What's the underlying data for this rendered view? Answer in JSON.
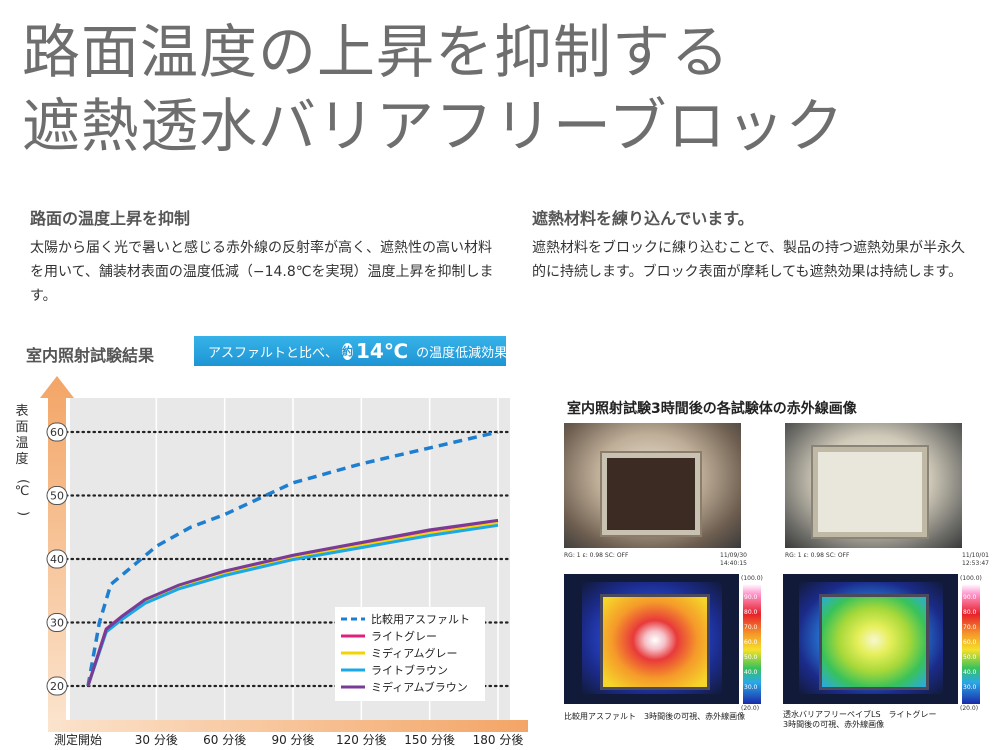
{
  "title": {
    "line1": "路面温度の上昇を抑制する",
    "line2": "遮熱透水バリアフリーブロック"
  },
  "left_block": {
    "heading": "路面の温度上昇を抑制",
    "body": "太陽から届く光で暑いと感じる赤外線の反射率が高く、遮熱性の高い材料を用いて、舗装材表面の温度低減（−14.8℃を実現）温度上昇を抑制します。"
  },
  "right_block": {
    "heading": "遮熱材料を練り込んでいます。",
    "body": "遮熱材料をブロックに練り込むことで、製品の持つ遮熱効果が半永久的に持続します。ブロック表面が摩耗しても遮熱効果は持続します。"
  },
  "section_title": "室内照射試験結果",
  "banner": {
    "prefix": "アスファルトと比べ、",
    "badge": "約",
    "value": "14℃",
    "suffix": "の温度低減効果"
  },
  "chart_data": {
    "type": "line",
    "ylabel": "表面温度(℃)",
    "xlabel": "",
    "categories": [
      "測定開始",
      "30 分後",
      "60 分後",
      "90 分後",
      "120 分後",
      "150 分後",
      "180 分後"
    ],
    "x": [
      0,
      30,
      60,
      90,
      120,
      150,
      180
    ],
    "ylim": [
      20,
      60
    ],
    "xlim": [
      0,
      180
    ],
    "yticks": [
      "20",
      "30",
      "40",
      "50",
      "60"
    ],
    "grid": true,
    "legend_position": "bottom-right",
    "series": [
      {
        "name": "比較用アスファルト",
        "color": "#1e7fd0",
        "dash": true,
        "x": [
          0,
          5,
          10,
          20,
          30,
          45,
          60,
          90,
          120,
          150,
          180
        ],
        "y": [
          20,
          30,
          36,
          39,
          42,
          45,
          47,
          52,
          55,
          57.5,
          60
        ]
      },
      {
        "name": "ライトグレー",
        "color": "#e0207f",
        "dash": false,
        "x": [
          0,
          8,
          15,
          25,
          40,
          60,
          90,
          120,
          150,
          180
        ],
        "y": [
          20,
          29,
          31,
          33.5,
          35.8,
          38,
          40.5,
          42.5,
          44.5,
          46
        ]
      },
      {
        "name": "ミディアムグレー",
        "color": "#f2d400",
        "dash": false,
        "x": [
          0,
          8,
          15,
          25,
          40,
          60,
          90,
          120,
          150,
          180
        ],
        "y": [
          20,
          28.7,
          30.7,
          33.2,
          35.5,
          37.6,
          40.1,
          42.1,
          44,
          45.6
        ]
      },
      {
        "name": "ライトブラウン",
        "color": "#1aa8e6",
        "dash": false,
        "x": [
          0,
          8,
          15,
          25,
          40,
          60,
          90,
          120,
          150,
          180
        ],
        "y": [
          20,
          28.5,
          30.5,
          33,
          35.3,
          37.4,
          39.9,
          41.8,
          43.7,
          45.3
        ]
      },
      {
        "name": "ミディアムブラウン",
        "color": "#7a3b96",
        "dash": false,
        "x": [
          0,
          8,
          15,
          25,
          40,
          60,
          90,
          120,
          150,
          180
        ],
        "y": [
          20,
          28.9,
          31,
          33.6,
          35.9,
          38.1,
          40.6,
          42.6,
          44.6,
          46.1
        ]
      }
    ]
  },
  "ir": {
    "title": "室内照射試験3時間後の各試験体の赤外線画像",
    "panels": [
      {
        "meta_left": "RG: 1   ε: 0.98  SC: OFF",
        "meta_right1": "11/09/30",
        "meta_right2": "14:40:15",
        "caption1": "比較用アスファルト　3時間後の可視、赤外線画像",
        "caption2": ""
      },
      {
        "meta_left": "RG: 1   ε: 0.98  SC: OFF",
        "meta_right1": "11/10/01",
        "meta_right2": "12:53:47",
        "caption1": "透水バリアフリーペイブLS　ライトグレー",
        "caption2": "3時間後の可視、赤外線画像"
      }
    ],
    "scale_top": "(100.0)",
    "scale_bottom": "(20.0)",
    "scale_ticks": [
      "90.0",
      "80.0",
      "70.0",
      "60.0",
      "50.0",
      "40.0",
      "30.0"
    ]
  }
}
